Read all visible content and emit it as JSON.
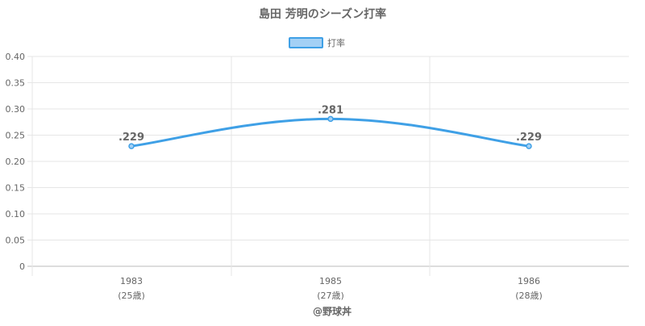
{
  "chart_data": {
    "type": "line",
    "title": "島田 芳明のシーズン打率",
    "legend": {
      "label": "打率",
      "placement": "top-center"
    },
    "ylim": [
      0,
      0.4
    ],
    "yticks": [
      "0.40",
      "0.35",
      "0.30",
      "0.25",
      "0.20",
      "0.15",
      "0.10",
      "0.05",
      "0"
    ],
    "categories": [
      "1983",
      "1985",
      "1986"
    ],
    "ages": [
      "(25歳)",
      "(27歳)",
      "(28歳)"
    ],
    "series": [
      {
        "name": "打率",
        "values": [
          0.229,
          0.281,
          0.229
        ],
        "labels": [
          ".229",
          ".281",
          ".229"
        ]
      }
    ],
    "grid": true,
    "colors": {
      "line": "#3fa0e6",
      "fill": "#a3d0f5",
      "grid": "#e6e6e6",
      "text": "#666666"
    }
  },
  "footer": "@野球丼"
}
